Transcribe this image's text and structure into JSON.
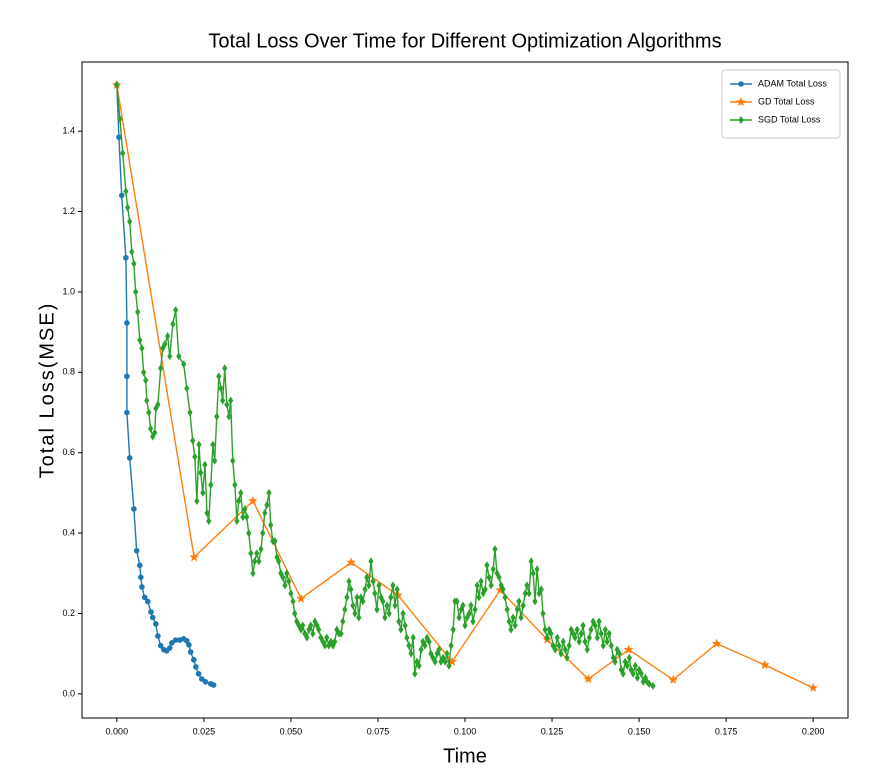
{
  "chart_data": {
    "type": "line",
    "title": "Total Loss Over Time for Different Optimization Algorithms",
    "x_label": "Time",
    "y_label": "Total Loss(MSE)",
    "xlim": [
      -0.01,
      0.21
    ],
    "ylim": [
      -0.06,
      1.572
    ],
    "xticks": [
      {
        "value": 0,
        "label": "0.000"
      },
      {
        "value": 0.025,
        "label": "0.025"
      },
      {
        "value": 0.05,
        "label": "0.050"
      },
      {
        "value": 0.075,
        "label": "0.075"
      },
      {
        "value": 0.1,
        "label": "0.100"
      },
      {
        "value": 0.125,
        "label": "0.125"
      },
      {
        "value": 0.15,
        "label": "0.150"
      },
      {
        "value": 0.175,
        "label": "0.175"
      },
      {
        "value": 0.2,
        "label": "0.200"
      }
    ],
    "yticks": [
      {
        "value": 0,
        "label": "0.0"
      },
      0.2,
      0.4,
      0.6,
      0.8,
      {
        "value": 1,
        "label": "1.0"
      },
      1.2,
      1.4
    ],
    "legend": "upper right",
    "series": [
      {
        "name": "ADAM Total Loss",
        "color": "#1f77b4",
        "marker": "circle",
        "x": [
          0,
          0.0006,
          0.0014,
          0.0026,
          0.0029,
          0.0029,
          0.0029,
          0.0037,
          0.0049,
          0.0057,
          0.0066,
          0.0069,
          0.0072,
          0.008,
          0.0089,
          0.0098,
          0.0103,
          0.0112,
          0.0118,
          0.0126,
          0.0135,
          0.0143,
          0.0152,
          0.0158,
          0.0169,
          0.0181,
          0.0192,
          0.0201,
          0.0207,
          0.0212,
          0.0221,
          0.0227,
          0.0235,
          0.0244,
          0.0255,
          0.027,
          0.0278
        ],
        "values": [
          1.515,
          1.385,
          1.24,
          1.085,
          0.923,
          0.79,
          0.7,
          0.587,
          0.46,
          0.356,
          0.32,
          0.29,
          0.266,
          0.24,
          0.23,
          0.204,
          0.19,
          0.174,
          0.144,
          0.12,
          0.11,
          0.107,
          0.114,
          0.127,
          0.134,
          0.134,
          0.137,
          0.132,
          0.122,
          0.104,
          0.085,
          0.067,
          0.05,
          0.037,
          0.03,
          0.025,
          0.022
        ]
      },
      {
        "name": "GD Total Loss",
        "color": "#ff7f0e",
        "marker": "star",
        "x": [
          0,
          0.0222,
          0.0391,
          0.0529,
          0.0673,
          0.0808,
          0.0963,
          0.1101,
          0.1236,
          0.1354,
          0.147,
          0.1598,
          0.1723,
          0.1861,
          0.2
        ],
        "values": [
          1.515,
          0.34,
          0.48,
          0.237,
          0.327,
          0.245,
          0.08,
          0.258,
          0.135,
          0.037,
          0.11,
          0.035,
          0.125,
          0.072,
          0.015
        ]
      },
      {
        "name": "SGD Total Loss",
        "color": "#2ca02c",
        "marker": "diamond",
        "x": [
          0,
          0.0009,
          0.0017,
          0.0026,
          0.0031,
          0.0037,
          0.0043,
          0.0049,
          0.0054,
          0.006,
          0.0066,
          0.0072,
          0.0077,
          0.0083,
          0.0086,
          0.0092,
          0.0097,
          0.0103,
          0.0109,
          0.0112,
          0.0118,
          0.0126,
          0.0132,
          0.0138,
          0.0146,
          0.0152,
          0.0161,
          0.0169,
          0.0178,
          0.0192,
          0.0201,
          0.021,
          0.0218,
          0.0224,
          0.023,
          0.0236,
          0.0241,
          0.0247,
          0.0253,
          0.0259,
          0.0264,
          0.027,
          0.0276,
          0.0281,
          0.0287,
          0.0293,
          0.0299,
          0.0304,
          0.031,
          0.0316,
          0.0322,
          0.0327,
          0.0333,
          0.0339,
          0.0345,
          0.035,
          0.0356,
          0.0362,
          0.0368,
          0.0373,
          0.0379,
          0.0385,
          0.0391,
          0.0396,
          0.0402,
          0.0408,
          0.0414,
          0.0419,
          0.0425,
          0.0431,
          0.0437,
          0.0442,
          0.0448,
          0.0454,
          0.046,
          0.0465,
          0.0471,
          0.0477,
          0.0483,
          0.0488,
          0.0494,
          0.05,
          0.0506,
          0.0511,
          0.0517,
          0.0523,
          0.0529,
          0.0534,
          0.054,
          0.0546,
          0.0552,
          0.0557,
          0.0563,
          0.0569,
          0.0575,
          0.058,
          0.0586,
          0.0592,
          0.0598,
          0.0603,
          0.0609,
          0.0615,
          0.0621,
          0.0626,
          0.0632,
          0.0638,
          0.0644,
          0.0649,
          0.0655,
          0.0661,
          0.0667,
          0.0672,
          0.0678,
          0.0684,
          0.069,
          0.0695,
          0.0701,
          0.0707,
          0.0713,
          0.0718,
          0.0724,
          0.073,
          0.0736,
          0.0741,
          0.0747,
          0.0753,
          0.0759,
          0.0764,
          0.077,
          0.0776,
          0.0782,
          0.0787,
          0.0793,
          0.0799,
          0.0805,
          0.081,
          0.0816,
          0.0822,
          0.0828,
          0.0833,
          0.0839,
          0.0845,
          0.0851,
          0.0856,
          0.0862,
          0.0868,
          0.0874,
          0.0879,
          0.0885,
          0.0891,
          0.0897,
          0.0902,
          0.0908,
          0.0914,
          0.092,
          0.0925,
          0.0931,
          0.0937,
          0.0943,
          0.0948,
          0.0954,
          0.096,
          0.0966,
          0.0971,
          0.0977,
          0.0983,
          0.0989,
          0.0994,
          0.1,
          0.1006,
          0.1012,
          0.1017,
          0.1023,
          0.1029,
          0.1035,
          0.104,
          0.1046,
          0.1052,
          0.1058,
          0.1063,
          0.1069,
          0.1075,
          0.1081,
          0.1086,
          0.1092,
          0.1098,
          0.1104,
          0.1109,
          0.1115,
          0.1121,
          0.1127,
          0.1132,
          0.1138,
          0.1144,
          0.115,
          0.1155,
          0.1161,
          0.1167,
          0.1173,
          0.1178,
          0.1184,
          0.119,
          0.1196,
          0.1201,
          0.1207,
          0.1213,
          0.1219,
          0.1224,
          0.123,
          0.1236,
          0.1242,
          0.1247,
          0.1253,
          0.1259,
          0.1265,
          0.127,
          0.1276,
          0.1282,
          0.1288,
          0.1293,
          0.1299,
          0.1305,
          0.1311,
          0.1316,
          0.1322,
          0.1328,
          0.1334,
          0.1339,
          0.1345,
          0.1351,
          0.1357,
          0.1362,
          0.1368,
          0.1374,
          0.138,
          0.1385,
          0.1391,
          0.1397,
          0.1403,
          0.1408,
          0.1414,
          0.142,
          0.1426,
          0.1431,
          0.1437,
          0.1443,
          0.1449,
          0.1454,
          0.146,
          0.1466,
          0.1472,
          0.1477,
          0.1483,
          0.1489,
          0.1495,
          0.15,
          0.1506,
          0.1512,
          0.1518,
          0.1523,
          0.1529,
          0.154
        ],
        "values": [
          1.515,
          1.43,
          1.345,
          1.25,
          1.21,
          1.175,
          1.1,
          1.07,
          1.0,
          0.95,
          0.88,
          0.86,
          0.8,
          0.78,
          0.73,
          0.7,
          0.66,
          0.64,
          0.65,
          0.71,
          0.72,
          0.81,
          0.86,
          0.87,
          0.89,
          0.84,
          0.92,
          0.955,
          0.84,
          0.82,
          0.76,
          0.7,
          0.63,
          0.59,
          0.48,
          0.62,
          0.55,
          0.5,
          0.57,
          0.45,
          0.43,
          0.52,
          0.62,
          0.58,
          0.69,
          0.79,
          0.76,
          0.73,
          0.81,
          0.72,
          0.69,
          0.73,
          0.58,
          0.52,
          0.43,
          0.48,
          0.5,
          0.44,
          0.46,
          0.44,
          0.4,
          0.35,
          0.3,
          0.33,
          0.35,
          0.33,
          0.36,
          0.4,
          0.45,
          0.47,
          0.5,
          0.42,
          0.38,
          0.38,
          0.34,
          0.33,
          0.3,
          0.29,
          0.27,
          0.3,
          0.28,
          0.25,
          0.23,
          0.2,
          0.18,
          0.17,
          0.16,
          0.17,
          0.15,
          0.14,
          0.16,
          0.17,
          0.15,
          0.18,
          0.17,
          0.16,
          0.14,
          0.13,
          0.12,
          0.14,
          0.12,
          0.13,
          0.12,
          0.13,
          0.16,
          0.15,
          0.15,
          0.18,
          0.21,
          0.24,
          0.28,
          0.26,
          0.22,
          0.2,
          0.24,
          0.19,
          0.24,
          0.23,
          0.26,
          0.29,
          0.27,
          0.33,
          0.28,
          0.25,
          0.21,
          0.27,
          0.24,
          0.23,
          0.19,
          0.22,
          0.2,
          0.24,
          0.27,
          0.22,
          0.26,
          0.18,
          0.16,
          0.2,
          0.17,
          0.14,
          0.12,
          0.1,
          0.14,
          0.05,
          0.08,
          0.07,
          0.11,
          0.13,
          0.12,
          0.14,
          0.13,
          0.1,
          0.09,
          0.08,
          0.1,
          0.11,
          0.08,
          0.09,
          0.08,
          0.1,
          0.07,
          0.12,
          0.16,
          0.23,
          0.23,
          0.19,
          0.21,
          0.22,
          0.17,
          0.19,
          0.2,
          0.22,
          0.18,
          0.21,
          0.27,
          0.24,
          0.28,
          0.25,
          0.26,
          0.32,
          0.29,
          0.27,
          0.31,
          0.36,
          0.3,
          0.29,
          0.27,
          0.26,
          0.24,
          0.21,
          0.18,
          0.16,
          0.19,
          0.17,
          0.21,
          0.23,
          0.19,
          0.22,
          0.25,
          0.27,
          0.25,
          0.33,
          0.3,
          0.23,
          0.31,
          0.25,
          0.26,
          0.2,
          0.16,
          0.14,
          0.16,
          0.15,
          0.12,
          0.11,
          0.14,
          0.12,
          0.1,
          0.13,
          0.11,
          0.09,
          0.12,
          0.16,
          0.15,
          0.14,
          0.16,
          0.13,
          0.15,
          0.17,
          0.13,
          0.11,
          0.14,
          0.16,
          0.18,
          0.17,
          0.14,
          0.18,
          0.15,
          0.12,
          0.16,
          0.13,
          0.15,
          0.12,
          0.09,
          0.08,
          0.11,
          0.1,
          0.06,
          0.05,
          0.08,
          0.07,
          0.09,
          0.06,
          0.05,
          0.07,
          0.04,
          0.06,
          0.05,
          0.03,
          0.04,
          0.03,
          0.025,
          0.02
        ]
      }
    ]
  }
}
